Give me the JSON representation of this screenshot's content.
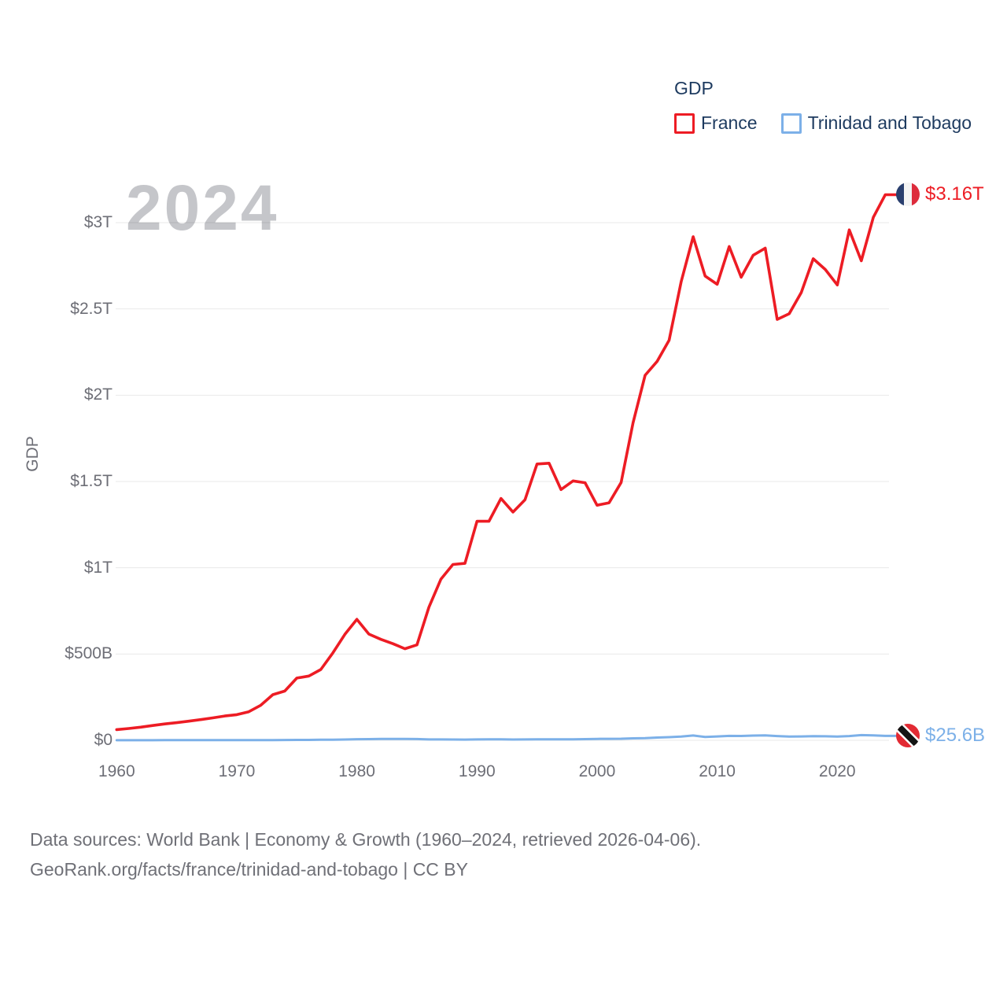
{
  "legend": {
    "title": "GDP",
    "items": [
      {
        "label": "France",
        "color": "#ed1c24"
      },
      {
        "label": "Trinidad and Tobago",
        "color": "#7cb0e8"
      }
    ]
  },
  "watermark": "2024",
  "y_axis": {
    "title": "GDP"
  },
  "end_labels": [
    {
      "series": "France",
      "value": "$3.16T"
    },
    {
      "series": "Trinidad and Tobago",
      "value": "$25.6B"
    }
  ],
  "footer": {
    "line1": "Data sources: World Bank | Economy & Growth (1960–2024, retrieved 2026-04-06).",
    "line2": "GeoRank.org/facts/france/trinidad-and-tobago | CC BY"
  },
  "chart_data": {
    "type": "line",
    "title": "GDP",
    "unit": "billions of current US$",
    "grid": true,
    "legend_position": "top-right",
    "x_range": [
      1960,
      2024
    ],
    "ylim_billions": [
      0,
      3000
    ],
    "x_tick_labels": [
      "1960",
      "1970",
      "1980",
      "1990",
      "2000",
      "2010",
      "2020"
    ],
    "x_tick_years": [
      1960,
      1970,
      1980,
      1990,
      2000,
      2010,
      2020
    ],
    "y_ticks": [
      {
        "label": "$0",
        "value": 0
      },
      {
        "label": "$500B",
        "value": 500
      },
      {
        "label": "$1T",
        "value": 1000
      },
      {
        "label": "$1.5T",
        "value": 1500
      },
      {
        "label": "$2T",
        "value": 2000
      },
      {
        "label": "$2.5T",
        "value": 2500
      },
      {
        "label": "$3T",
        "value": 3000
      }
    ],
    "years": [
      1960,
      1961,
      1962,
      1963,
      1964,
      1965,
      1966,
      1967,
      1968,
      1969,
      1970,
      1971,
      1972,
      1973,
      1974,
      1975,
      1976,
      1977,
      1978,
      1979,
      1980,
      1981,
      1982,
      1983,
      1984,
      1985,
      1986,
      1987,
      1988,
      1989,
      1990,
      1991,
      1992,
      1993,
      1994,
      1995,
      1996,
      1997,
      1998,
      1999,
      2000,
      2001,
      2002,
      2003,
      2004,
      2005,
      2006,
      2007,
      2008,
      2009,
      2010,
      2011,
      2012,
      2013,
      2014,
      2015,
      2016,
      2017,
      2018,
      2019,
      2020,
      2021,
      2022,
      2023,
      2024
    ],
    "series": [
      {
        "name": "France",
        "color": "#ed1c24",
        "end_label": "$3.16T",
        "values_billions": [
          62.2,
          68.3,
          76.3,
          85.6,
          94.9,
          102.2,
          110.6,
          119.9,
          130.0,
          140.7,
          148.5,
          165.6,
          203.5,
          264.4,
          285.5,
          360.8,
          372.3,
          410.3,
          506.7,
          614.0,
          701.3,
          615.6,
          584.8,
          559.9,
          530.6,
          553.1,
          771.4,
          934.2,
          1018.8,
          1025.2,
          1269.2,
          1269.3,
          1401.5,
          1322.8,
          1393.9,
          1601.1,
          1605.7,
          1452.9,
          1503.0,
          1492.6,
          1362.2,
          1376.5,
          1494.3,
          1840.5,
          2115.7,
          2196.1,
          2318.6,
          2657.2,
          2918.4,
          2690.2,
          2642.6,
          2861.4,
          2683.8,
          2811.1,
          2852.2,
          2439.2,
          2472.3,
          2595.2,
          2790.9,
          2728.9,
          2639.0,
          2957.9,
          2779.1,
          3030.9,
          3162.0
        ]
      },
      {
        "name": "Trinidad and Tobago",
        "color": "#7cb0e8",
        "end_label": "$25.6B",
        "values_billions": [
          0.54,
          0.6,
          0.63,
          0.66,
          0.7,
          0.73,
          0.75,
          0.78,
          0.81,
          0.83,
          0.82,
          0.9,
          1.0,
          1.31,
          1.84,
          2.44,
          2.5,
          3.14,
          3.56,
          4.6,
          6.24,
          6.91,
          8.14,
          7.69,
          7.79,
          7.37,
          4.79,
          4.79,
          4.48,
          4.32,
          5.07,
          5.31,
          5.44,
          4.57,
          4.95,
          5.33,
          5.76,
          5.74,
          6.05,
          6.8,
          8.15,
          8.83,
          9.01,
          11.31,
          12.99,
          15.98,
          18.37,
          21.54,
          27.87,
          19.2,
          22.16,
          25.38,
          25.23,
          27.26,
          28.06,
          24.66,
          21.99,
          22.22,
          23.84,
          23.21,
          21.59,
          24.46,
          30.05,
          28.14,
          25.6
        ]
      }
    ]
  }
}
